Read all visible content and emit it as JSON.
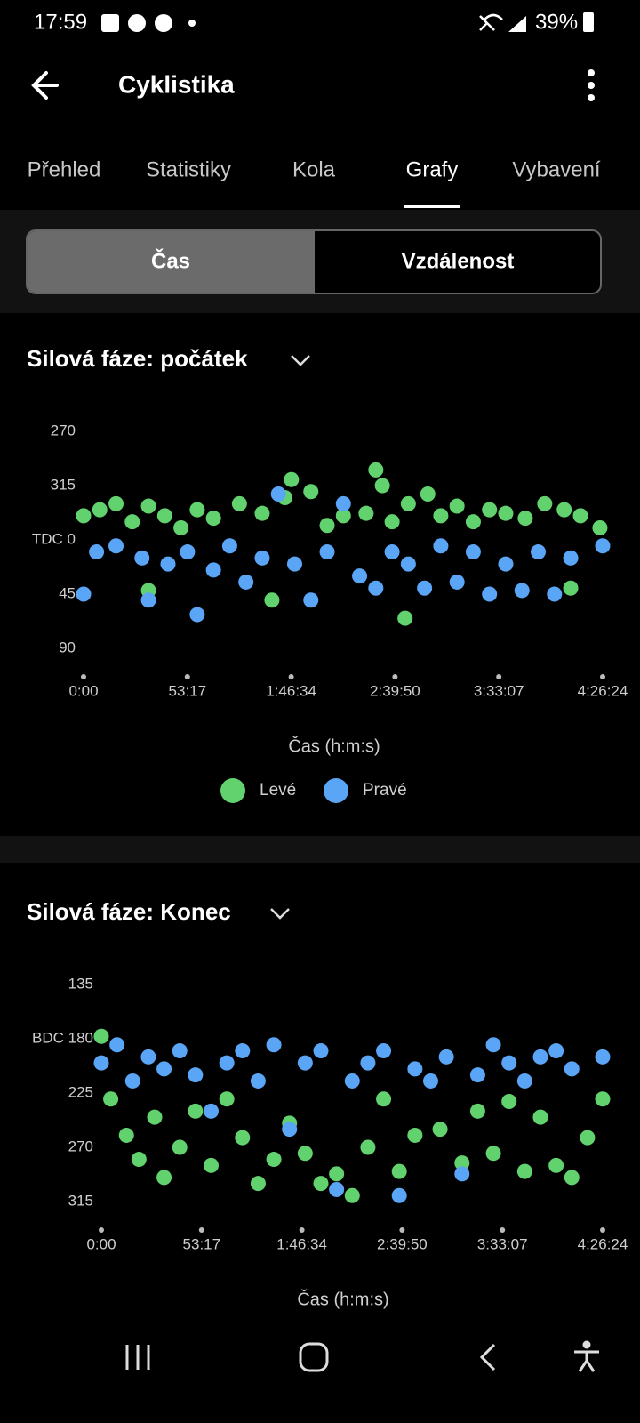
{
  "status_bar": {
    "time": "17:59",
    "battery": "39%"
  },
  "app_bar": {
    "title": "Cyklistika"
  },
  "tabs": {
    "items": [
      "Přehled",
      "Statistiky",
      "Kola",
      "Grafy",
      "Vybavení"
    ],
    "active": 3
  },
  "segment": {
    "items": [
      "Čas",
      "Vzdálenost"
    ],
    "active": 0
  },
  "chart_data": [
    {
      "type": "scatter",
      "title": "Silová fáze: počátek",
      "x_label": "Čas (h:m:s)",
      "y_reversed": true,
      "xlim": [
        0,
        15984
      ],
      "ylim": [
        -90,
        90
      ],
      "xticks": [
        {
          "value": 0,
          "label": "0:00"
        },
        {
          "value": 3197,
          "label": "53:17"
        },
        {
          "value": 6394,
          "label": "1:46:34"
        },
        {
          "value": 9590,
          "label": "2:39:50"
        },
        {
          "value": 12787,
          "label": "3:33:07"
        },
        {
          "value": 15984,
          "label": "4:26:24"
        }
      ],
      "yticks": [
        {
          "value": -90,
          "label": "270"
        },
        {
          "value": -45,
          "label": "315"
        },
        {
          "value": 0,
          "label": "TDC 0"
        },
        45,
        90
      ],
      "series": [
        {
          "name": "Levé",
          "color": "#62d26f",
          "x": [
            0,
            500,
            1000,
            1500,
            2000,
            2500,
            3000,
            3500,
            4000,
            4800,
            5500,
            6200,
            6400,
            7000,
            7500,
            8000,
            8700,
            9000,
            9200,
            9500,
            10000,
            10600,
            11000,
            11500,
            12000,
            12500,
            13000,
            13600,
            14200,
            14800,
            15300,
            15900,
            9900,
            5800,
            2000,
            15000
          ],
          "values": [
            -20,
            -25,
            -30,
            -15,
            -28,
            -20,
            -10,
            -25,
            -18,
            -30,
            -22,
            -35,
            -50,
            -40,
            -12,
            -20,
            -22,
            -58,
            -45,
            -15,
            -30,
            -38,
            -20,
            -28,
            -15,
            -25,
            -22,
            -18,
            -30,
            -25,
            -20,
            -10,
            65,
            50,
            42,
            40
          ]
        },
        {
          "name": "Pravé",
          "color": "#5aa5f5",
          "x": [
            0,
            400,
            1000,
            1800,
            2000,
            2600,
            3200,
            3500,
            4000,
            4500,
            5000,
            5500,
            6000,
            6500,
            7000,
            7500,
            8000,
            8500,
            9000,
            9500,
            10000,
            10500,
            11000,
            11500,
            12000,
            12500,
            13000,
            13500,
            14000,
            14500,
            15000,
            15984
          ],
          "values": [
            45,
            10,
            5,
            15,
            50,
            20,
            10,
            62,
            25,
            5,
            35,
            15,
            -38,
            20,
            50,
            10,
            -30,
            30,
            40,
            10,
            20,
            40,
            5,
            35,
            10,
            45,
            20,
            42,
            10,
            45,
            15,
            5
          ]
        }
      ]
    },
    {
      "type": "scatter",
      "title": "Silová fáze: Konec",
      "x_label": "Čas (h:m:s)",
      "y_reversed": true,
      "xlim": [
        0,
        15984
      ],
      "ylim": [
        135,
        315
      ],
      "xticks": [
        {
          "value": 0,
          "label": "0:00"
        },
        {
          "value": 3197,
          "label": "53:17"
        },
        {
          "value": 6394,
          "label": "1:46:34"
        },
        {
          "value": 9590,
          "label": "2:39:50"
        },
        {
          "value": 12787,
          "label": "3:33:07"
        },
        {
          "value": 15984,
          "label": "4:26:24"
        }
      ],
      "yticks": [
        135,
        {
          "value": 180,
          "label": "BDC 180"
        },
        225,
        270,
        315
      ],
      "series": [
        {
          "color": "#62d26f",
          "x": [
            0,
            300,
            800,
            1200,
            1700,
            2000,
            2500,
            3000,
            3500,
            4000,
            4500,
            5000,
            5500,
            6000,
            6500,
            7000,
            7500,
            8000,
            8500,
            9000,
            9500,
            10000,
            10800,
            11500,
            12000,
            12500,
            13000,
            13500,
            14000,
            14500,
            15000,
            15500,
            15984
          ],
          "values": [
            178,
            230,
            260,
            280,
            245,
            295,
            270,
            240,
            285,
            230,
            262,
            300,
            280,
            250,
            275,
            300,
            292,
            310,
            270,
            230,
            290,
            260,
            255,
            283,
            240,
            275,
            232,
            290,
            245,
            285,
            295,
            262,
            230
          ]
        },
        {
          "color": "#5aa5f5",
          "x": [
            0,
            500,
            1000,
            1500,
            2000,
            2500,
            3000,
            3500,
            4000,
            4500,
            5000,
            5500,
            6000,
            6500,
            7000,
            7500,
            8000,
            8500,
            9000,
            9500,
            10000,
            10500,
            11000,
            11500,
            12000,
            12500,
            13000,
            13500,
            14000,
            14500,
            15000,
            15984
          ],
          "values": [
            200,
            185,
            215,
            195,
            205,
            190,
            210,
            240,
            200,
            190,
            215,
            185,
            255,
            200,
            190,
            305,
            215,
            200,
            190,
            310,
            205,
            215,
            195,
            292,
            210,
            185,
            200,
            215,
            195,
            190,
            205,
            195
          ]
        }
      ]
    }
  ]
}
